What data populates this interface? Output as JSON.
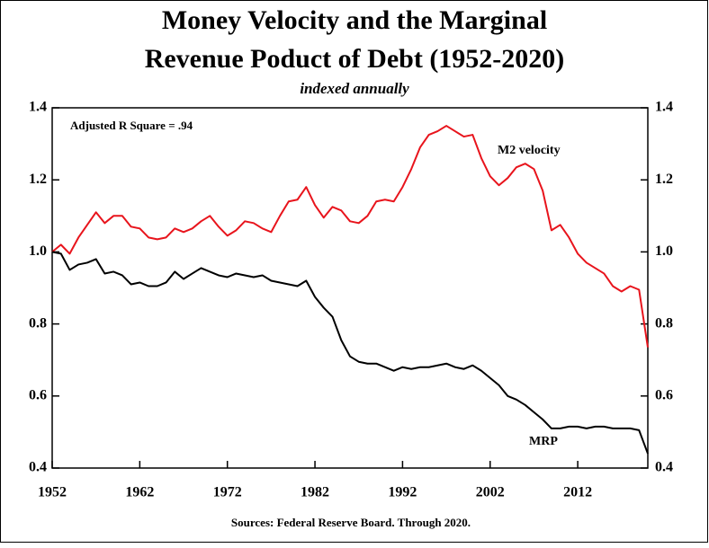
{
  "chart_data": {
    "type": "line",
    "title": [
      "Money Velocity and the Marginal",
      "Revenue Poduct of Debt (1952-2020)"
    ],
    "subtitle": "indexed annually",
    "annotation": "Adjusted R Square = .94",
    "source": "Sources: Federal Reserve Board. Through 2020.",
    "x": [
      1952,
      1953,
      1954,
      1955,
      1956,
      1957,
      1958,
      1959,
      1960,
      1961,
      1962,
      1963,
      1964,
      1965,
      1966,
      1967,
      1968,
      1969,
      1970,
      1971,
      1972,
      1973,
      1974,
      1975,
      1976,
      1977,
      1978,
      1979,
      1980,
      1981,
      1982,
      1983,
      1984,
      1985,
      1986,
      1987,
      1988,
      1989,
      1990,
      1991,
      1992,
      1993,
      1994,
      1995,
      1996,
      1997,
      1998,
      1999,
      2000,
      2001,
      2002,
      2003,
      2004,
      2005,
      2006,
      2007,
      2008,
      2009,
      2010,
      2011,
      2012,
      2013,
      2014,
      2015,
      2016,
      2017,
      2018,
      2019,
      2020
    ],
    "series": [
      {
        "name": "M2 velocity",
        "color": "#e8141c",
        "values": [
          1.0,
          1.02,
          0.995,
          1.04,
          1.075,
          1.11,
          1.08,
          1.1,
          1.1,
          1.07,
          1.065,
          1.04,
          1.035,
          1.04,
          1.065,
          1.055,
          1.065,
          1.085,
          1.1,
          1.07,
          1.045,
          1.06,
          1.085,
          1.08,
          1.065,
          1.055,
          1.1,
          1.14,
          1.145,
          1.18,
          1.13,
          1.095,
          1.125,
          1.115,
          1.085,
          1.08,
          1.1,
          1.14,
          1.145,
          1.14,
          1.18,
          1.23,
          1.29,
          1.325,
          1.335,
          1.35,
          1.335,
          1.32,
          1.325,
          1.26,
          1.21,
          1.185,
          1.205,
          1.235,
          1.245,
          1.23,
          1.17,
          1.06,
          1.075,
          1.04,
          0.995,
          0.97,
          0.955,
          0.94,
          0.905,
          0.89,
          0.905,
          0.895,
          0.735
        ]
      },
      {
        "name": "MRP",
        "color": "#000000",
        "values": [
          1.0,
          0.995,
          0.95,
          0.965,
          0.97,
          0.98,
          0.94,
          0.945,
          0.935,
          0.91,
          0.915,
          0.905,
          0.905,
          0.915,
          0.945,
          0.925,
          0.94,
          0.955,
          0.945,
          0.935,
          0.93,
          0.94,
          0.935,
          0.93,
          0.935,
          0.92,
          0.915,
          0.91,
          0.905,
          0.92,
          0.875,
          0.845,
          0.82,
          0.755,
          0.71,
          0.695,
          0.69,
          0.69,
          0.68,
          0.67,
          0.68,
          0.675,
          0.68,
          0.68,
          0.685,
          0.69,
          0.68,
          0.675,
          0.685,
          0.67,
          0.65,
          0.63,
          0.6,
          0.59,
          0.575,
          0.555,
          0.535,
          0.51,
          0.51,
          0.515,
          0.515,
          0.51,
          0.515,
          0.515,
          0.51,
          0.51,
          0.51,
          0.505,
          0.44
        ]
      }
    ],
    "xlim": [
      1952,
      2020
    ],
    "xticks": [
      1952,
      1962,
      1972,
      1982,
      1992,
      2002,
      2012
    ],
    "ylim": [
      0.4,
      1.4
    ],
    "yticks": [
      0.4,
      0.6,
      0.8,
      {
        "value": 1,
        "label": "1.0"
      },
      1.2,
      1.4
    ],
    "y2lim": [
      0.4,
      1.4
    ],
    "y2ticks": [
      0.4,
      0.6,
      0.8,
      {
        "value": 1,
        "label": "1.0"
      },
      1.2,
      1.4
    ],
    "grid": false
  }
}
